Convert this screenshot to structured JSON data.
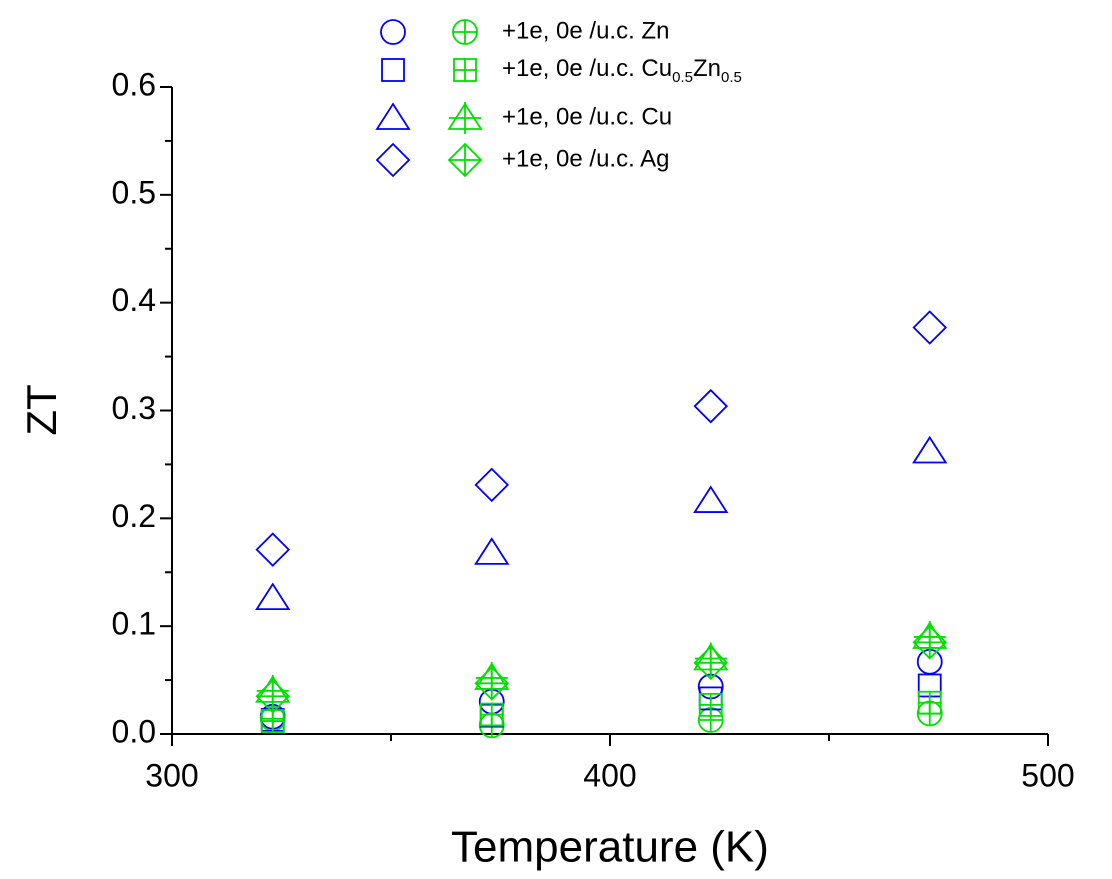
{
  "chart_data": {
    "type": "scatter",
    "x_label": "Temperature (K)",
    "y_label": "ZT",
    "xlim": [
      300,
      500
    ],
    "ylim": [
      0,
      0.6
    ],
    "xticks": [
      300,
      400,
      500
    ],
    "xminor": [
      350,
      450
    ],
    "yticks": [
      {
        "value": 0,
        "label": "0.0"
      },
      0.1,
      0.2,
      0.3,
      0.4,
      0.5,
      0.6
    ],
    "yminor": [
      0.05,
      0.15,
      0.25,
      0.35,
      0.45,
      0.55
    ],
    "x": [
      323,
      373,
      423,
      473
    ],
    "series": [
      {
        "name": "+1e, 0e /u.c. Zn",
        "marker": "circle",
        "subseries": [
          {
            "color": "#0000ff",
            "values": [
              0.016,
              0.03,
              0.044,
              0.067
            ]
          },
          {
            "color": "#00e000",
            "values": [
              0.014,
              0.008,
              0.013,
              0.019
            ]
          }
        ]
      },
      {
        "name": [
          "+1e, 0e /u.c. Cu",
          "0.5",
          "Zn",
          "0.5"
        ],
        "marker": "square",
        "subseries": [
          {
            "color": "#0000ff",
            "values": [
              0.013,
              0.017,
              0.033,
              0.045
            ]
          },
          {
            "color": "#00e000",
            "values": [
              0.012,
              0.018,
              0.027,
              0.029
            ]
          }
        ]
      },
      {
        "name": "+1e, 0e /u.c. Cu",
        "marker": "triangle",
        "subseries": [
          {
            "color": "#0000ff",
            "values": [
              0.126,
              0.168,
              0.216,
              0.262
            ]
          },
          {
            "color": "#00e000",
            "values": [
              0.04,
              0.052,
              0.07,
              0.09
            ]
          }
        ]
      },
      {
        "name": " +1e, 0e /u.c. Ag",
        "marker": "diamond",
        "subseries": [
          {
            "color": "#0000ff",
            "values": [
              0.171,
              0.231,
              0.304,
              0.377
            ]
          },
          {
            "color": "#00e000",
            "values": [
              0.035,
              0.047,
              0.066,
              0.085
            ]
          }
        ]
      }
    ]
  }
}
